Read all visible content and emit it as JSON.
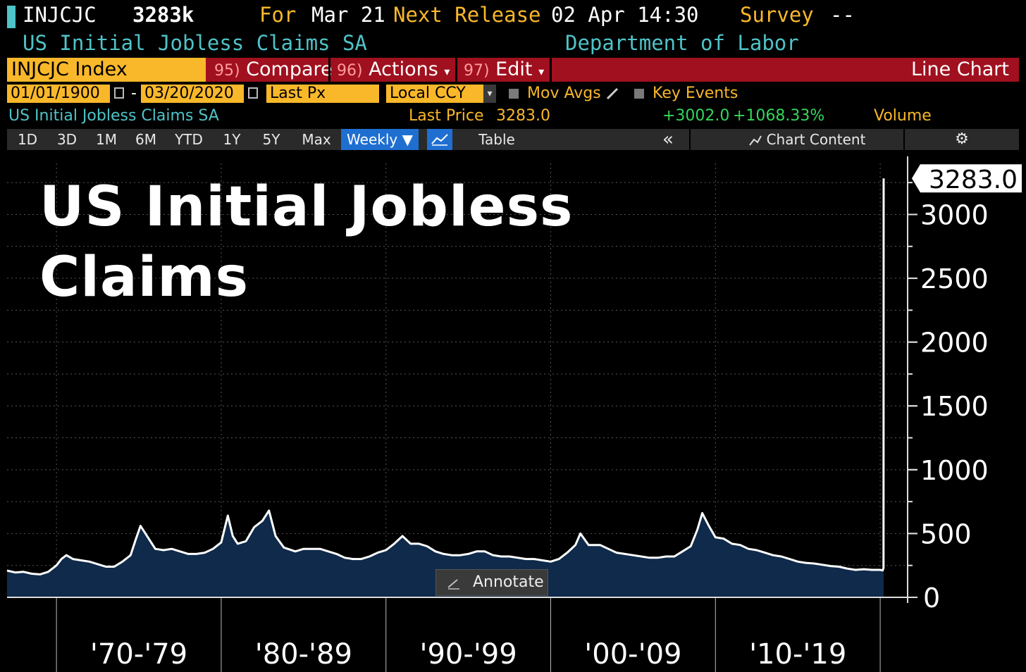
{
  "header": {
    "ticker": "INJCJC",
    "value": "3283k",
    "for_label": "For",
    "for_date": "Mar 21",
    "next_release_label": "Next Release",
    "next_release_value": "02 Apr 14:30",
    "survey_label": "Survey",
    "survey_value": "--",
    "series_name": "US Initial Jobless Claims SA",
    "source": "Department of Labor"
  },
  "toolbar": {
    "index_field": "INJCJC Index",
    "compare_num": "95)",
    "compare_label": "Compare",
    "actions_num": "96)",
    "actions_label": "Actions",
    "edit_num": "97)",
    "edit_label": "Edit",
    "chart_type": "Line Chart",
    "dropdown_arrow": "▾"
  },
  "settings": {
    "start_date": "01/01/1900",
    "dash": "-",
    "end_date": "03/20/2020",
    "field": "Last Px",
    "currency": "Local CCY",
    "mov_avgs": "Mov Avgs",
    "key_events": "Key Events"
  },
  "legend": {
    "series": "US Initial Jobless Claims SA",
    "last_price_label": "Last Price",
    "last_price_value": "3283.0",
    "change_abs": "+3002.0",
    "change_pct": "+1068.33%",
    "volume": "Volume"
  },
  "ranges": {
    "items": [
      "1D",
      "3D",
      "1M",
      "6M",
      "YTD",
      "1Y",
      "5Y",
      "Max"
    ],
    "frequency": "Weekly ▼",
    "table": "Table",
    "collapse": "«",
    "chart_content": "Chart Content",
    "gear": "⚙"
  },
  "overlay": {
    "title_line1": "US Initial Jobless",
    "title_line2": "Claims",
    "annotate": "Annotate"
  },
  "colors": {
    "accent_yellow": "#f9b82a",
    "bar_red": "#a0101e",
    "cyan": "#4fc3c8",
    "green": "#33d65a",
    "area_fill": "#0f2a4a",
    "line": "#ffffff"
  },
  "chart_data": {
    "type": "area",
    "ylim": [
      0,
      3400
    ],
    "yticks": [
      0,
      500,
      1000,
      1500,
      2000,
      2500,
      3000
    ],
    "xlim": [
      1967.0,
      2020.4
    ],
    "decade_labels": [
      "'70-'79",
      "'80-'89",
      "'90-'99",
      "'00-'09",
      "'10-'19"
    ],
    "decade_starts": [
      1970,
      1980,
      1990,
      2000,
      2010,
      2020
    ],
    "last_value_label": "3283.0",
    "grid": true,
    "series": [
      {
        "points": [
          [
            1967.0,
            210
          ],
          [
            1967.5,
            195
          ],
          [
            1968.0,
            200
          ],
          [
            1968.5,
            185
          ],
          [
            1969.0,
            180
          ],
          [
            1969.5,
            200
          ],
          [
            1970.0,
            250
          ],
          [
            1970.3,
            300
          ],
          [
            1970.6,
            330
          ],
          [
            1971.0,
            300
          ],
          [
            1971.5,
            290
          ],
          [
            1972.0,
            280
          ],
          [
            1972.5,
            260
          ],
          [
            1973.0,
            240
          ],
          [
            1973.5,
            240
          ],
          [
            1974.0,
            280
          ],
          [
            1974.5,
            330
          ],
          [
            1974.8,
            450
          ],
          [
            1975.1,
            560
          ],
          [
            1975.5,
            480
          ],
          [
            1976.0,
            380
          ],
          [
            1976.5,
            370
          ],
          [
            1977.0,
            380
          ],
          [
            1977.5,
            360
          ],
          [
            1978.0,
            340
          ],
          [
            1978.5,
            340
          ],
          [
            1979.0,
            350
          ],
          [
            1979.5,
            380
          ],
          [
            1980.0,
            430
          ],
          [
            1980.4,
            640
          ],
          [
            1980.7,
            480
          ],
          [
            1981.0,
            420
          ],
          [
            1981.5,
            440
          ],
          [
            1982.0,
            550
          ],
          [
            1982.5,
            600
          ],
          [
            1982.9,
            680
          ],
          [
            1983.3,
            480
          ],
          [
            1983.8,
            390
          ],
          [
            1984.5,
            360
          ],
          [
            1985.0,
            380
          ],
          [
            1985.5,
            380
          ],
          [
            1986.0,
            380
          ],
          [
            1986.5,
            360
          ],
          [
            1987.0,
            340
          ],
          [
            1987.5,
            310
          ],
          [
            1988.0,
            300
          ],
          [
            1988.5,
            300
          ],
          [
            1989.0,
            320
          ],
          [
            1989.5,
            350
          ],
          [
            1990.0,
            370
          ],
          [
            1990.5,
            420
          ],
          [
            1991.0,
            480
          ],
          [
            1991.5,
            420
          ],
          [
            1992.0,
            420
          ],
          [
            1992.5,
            400
          ],
          [
            1993.0,
            360
          ],
          [
            1993.5,
            340
          ],
          [
            1994.0,
            330
          ],
          [
            1994.5,
            330
          ],
          [
            1995.0,
            340
          ],
          [
            1995.5,
            360
          ],
          [
            1996.0,
            360
          ],
          [
            1996.5,
            330
          ],
          [
            1997.0,
            320
          ],
          [
            1997.5,
            320
          ],
          [
            1998.0,
            310
          ],
          [
            1998.5,
            300
          ],
          [
            1999.0,
            300
          ],
          [
            1999.5,
            290
          ],
          [
            2000.0,
            280
          ],
          [
            2000.5,
            300
          ],
          [
            2001.0,
            350
          ],
          [
            2001.5,
            410
          ],
          [
            2001.8,
            500
          ],
          [
            2002.3,
            410
          ],
          [
            2003.0,
            410
          ],
          [
            2003.5,
            380
          ],
          [
            2004.0,
            350
          ],
          [
            2004.5,
            340
          ],
          [
            2005.0,
            330
          ],
          [
            2005.5,
            320
          ],
          [
            2006.0,
            310
          ],
          [
            2006.5,
            310
          ],
          [
            2007.0,
            320
          ],
          [
            2007.5,
            320
          ],
          [
            2008.0,
            360
          ],
          [
            2008.5,
            400
          ],
          [
            2008.9,
            530
          ],
          [
            2009.2,
            660
          ],
          [
            2009.6,
            560
          ],
          [
            2010.0,
            470
          ],
          [
            2010.5,
            460
          ],
          [
            2011.0,
            420
          ],
          [
            2011.5,
            410
          ],
          [
            2012.0,
            380
          ],
          [
            2012.5,
            370
          ],
          [
            2013.0,
            350
          ],
          [
            2013.5,
            330
          ],
          [
            2014.0,
            320
          ],
          [
            2014.5,
            300
          ],
          [
            2015.0,
            280
          ],
          [
            2015.5,
            270
          ],
          [
            2016.0,
            265
          ],
          [
            2016.5,
            255
          ],
          [
            2017.0,
            245
          ],
          [
            2017.5,
            240
          ],
          [
            2018.0,
            225
          ],
          [
            2018.5,
            215
          ],
          [
            2019.0,
            220
          ],
          [
            2019.5,
            215
          ],
          [
            2020.0,
            215
          ],
          [
            2020.15,
            211
          ],
          [
            2020.2,
            230
          ],
          [
            2020.21,
            3283
          ]
        ]
      }
    ]
  }
}
